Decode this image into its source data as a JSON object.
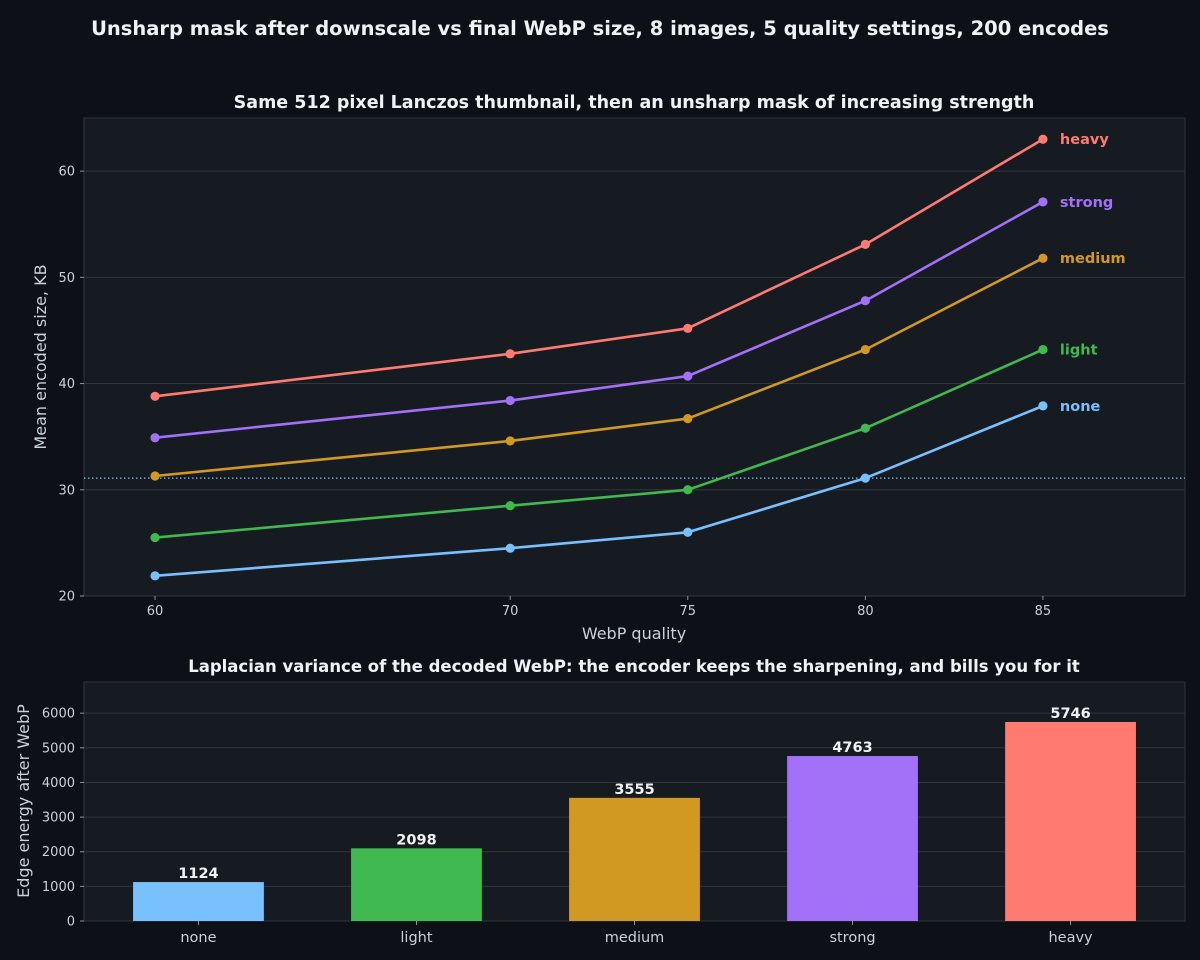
{
  "figure": {
    "title": "Unsharp mask after downscale vs final WebP size, 8 images, 5 quality settings, 200 encodes",
    "background": "#0d1016",
    "panel_background": "#161b22",
    "grid_color": "#30363d"
  },
  "chart_data": [
    {
      "type": "line",
      "title": "Same 512 pixel Lanczos thumbnail, then an unsharp mask of increasing strength",
      "xlabel": "WebP quality",
      "ylabel": "Mean encoded size, KB",
      "x": [
        60,
        70,
        75,
        80,
        85
      ],
      "xticks": [
        "60",
        "70",
        "75",
        "80",
        "85"
      ],
      "xlim": [
        58,
        89
      ],
      "yticks": [
        "20",
        "30",
        "40",
        "50",
        "60"
      ],
      "ylim": [
        20,
        65
      ],
      "grid": "horizontal",
      "reference_line": {
        "y": 31.1,
        "style": "dotted",
        "color": "#79c0ff"
      },
      "series": [
        {
          "name": "none",
          "color": "#79c0ff",
          "values": [
            21.9,
            24.5,
            26.0,
            31.1,
            37.9
          ]
        },
        {
          "name": "light",
          "color": "#3fb950",
          "values": [
            25.5,
            28.5,
            30.0,
            35.8,
            43.2
          ]
        },
        {
          "name": "medium",
          "color": "#d29922",
          "values": [
            31.3,
            34.6,
            36.7,
            43.2,
            51.8
          ]
        },
        {
          "name": "strong",
          "color": "#a371f7",
          "values": [
            34.9,
            38.4,
            40.7,
            47.8,
            57.1
          ]
        },
        {
          "name": "heavy",
          "color": "#ff7b72",
          "values": [
            38.8,
            42.8,
            45.2,
            53.1,
            63.0
          ]
        }
      ]
    },
    {
      "type": "bar",
      "title": "Laplacian variance of the decoded WebP: the encoder keeps the sharpening, and bills you for it",
      "xlabel": "",
      "ylabel": "Edge energy after WebP",
      "categories": [
        "none",
        "light",
        "medium",
        "strong",
        "heavy"
      ],
      "values": [
        1124,
        2098,
        3555,
        4763,
        5746
      ],
      "value_labels": [
        "1124",
        "2098",
        "3555",
        "4763",
        "5746"
      ],
      "colors": [
        "#79c0ff",
        "#3fb950",
        "#d29922",
        "#a371f7",
        "#ff7b72"
      ],
      "yticks": [
        "0",
        "1000",
        "2000",
        "3000",
        "4000",
        "5000",
        "6000"
      ],
      "ylim": [
        0,
        6900
      ],
      "grid": "horizontal"
    }
  ]
}
